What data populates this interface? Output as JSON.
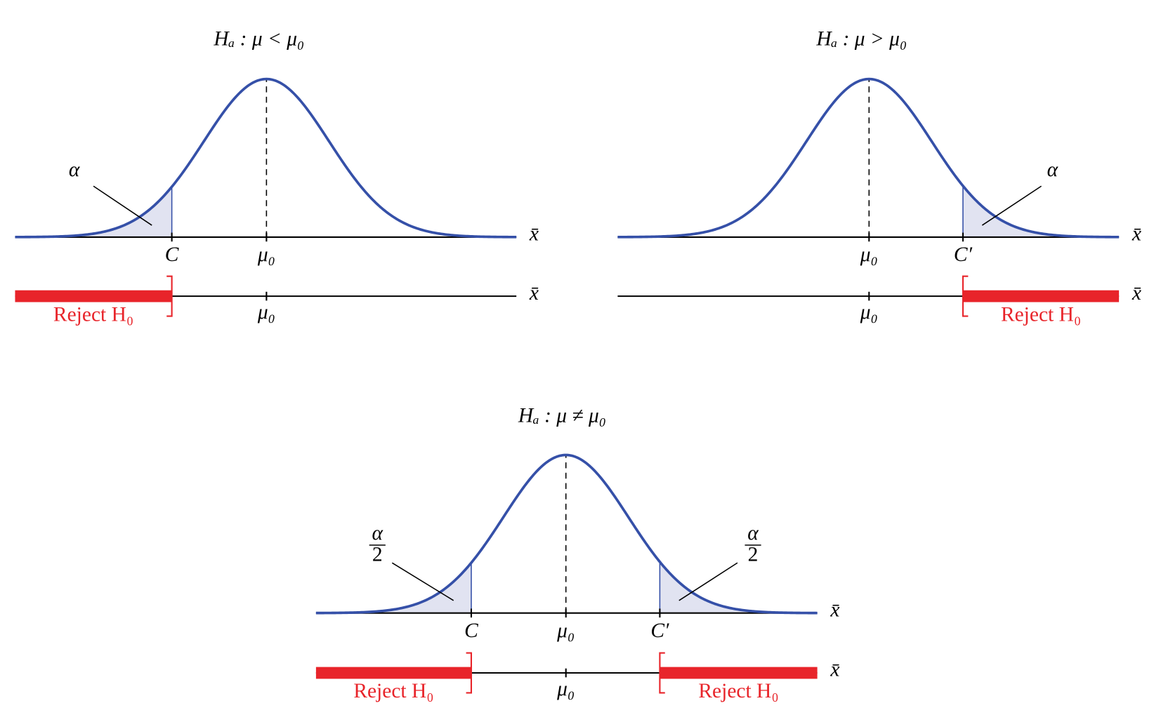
{
  "panels": [
    {
      "title": "Hₐ : μ < μ₀",
      "tail_labels": [
        {
          "text": "α"
        }
      ],
      "critical_labels": [
        "C"
      ],
      "center_label": "μ₀",
      "axis_label": "x̄",
      "center_label_2": "μ₀",
      "axis_label_2": "x̄",
      "reject_labels": [
        "Reject H₀"
      ]
    },
    {
      "title": "Hₐ : μ > μ₀",
      "tail_labels": [
        {
          "text": "α"
        }
      ],
      "critical_labels": [
        "C′"
      ],
      "center_label": "μ₀",
      "axis_label": "x̄",
      "center_label_2": "μ₀",
      "axis_label_2": "x̄",
      "reject_labels": [
        "Reject H₀"
      ]
    },
    {
      "title": "Hₐ : μ ≠ μ₀",
      "tail_labels": [
        {
          "numerator": "α",
          "denominator": "2"
        },
        {
          "numerator": "α",
          "denominator": "2"
        }
      ],
      "critical_labels": [
        "C",
        "C′"
      ],
      "center_label": "μ₀",
      "axis_label": "x̄",
      "center_label_2": "μ₀",
      "axis_label_2": "x̄",
      "reject_labels": [
        "Reject H₀",
        "Reject H₀"
      ]
    }
  ]
}
